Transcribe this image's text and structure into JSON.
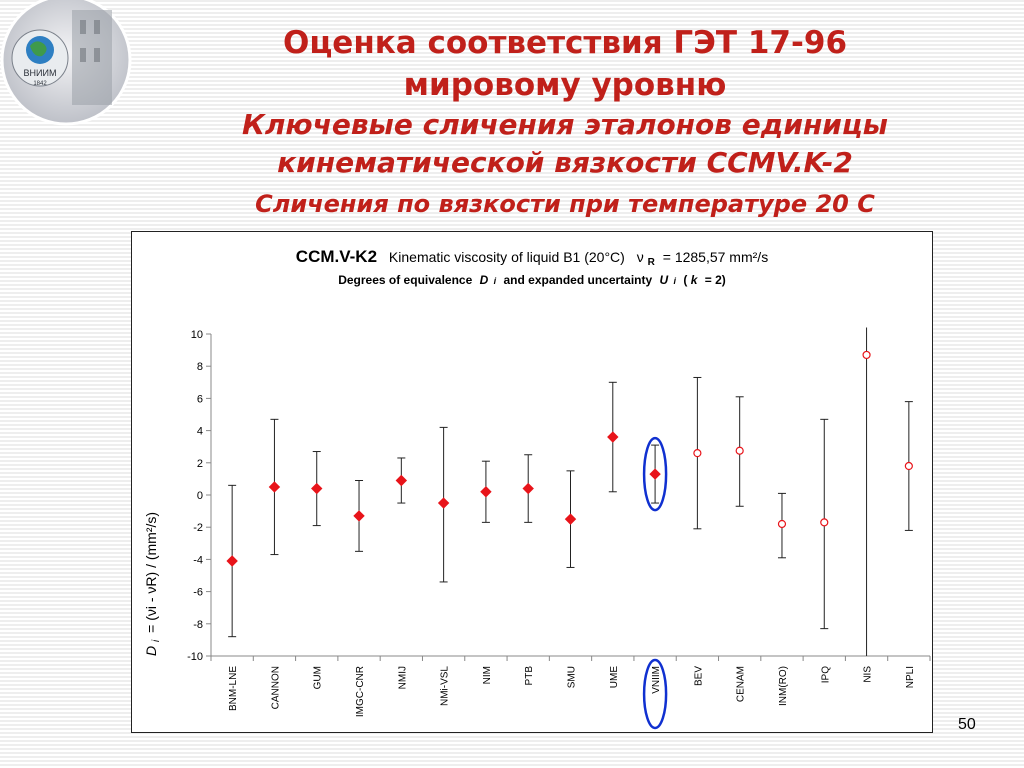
{
  "slide": {
    "title_line1": "Оценка соответствия ГЭТ 17-96",
    "title_line2": "мировому уровню",
    "subtitle_line1": "Ключевые сличения эталонов единицы",
    "subtitle_line2": "кинематической вязкости CCMV.K-2",
    "subtitle_line3": "Сличения по вязкости при температуре 20 С",
    "page_number": "50",
    "logo_text": "ВНИИМ",
    "logo_year": "1842"
  },
  "chart_data": {
    "type": "scatter",
    "title_main": "CCM.V-K2",
    "title_rest": "Kinematic viscosity of liquid B1 (20°C)",
    "title_nu": "ν",
    "title_nu_sub": "R",
    "title_value": "= 1285,57 mm²/s",
    "subtitle_prefix": "Degrees of equivalence",
    "subtitle_d": "D",
    "subtitle_i": "i",
    "subtitle_mid": "and expanded uncertainty",
    "subtitle_u": "U",
    "subtitle_k_open": "(",
    "subtitle_k": "k",
    "subtitle_k_value": "= 2)",
    "ylabel_d": "D",
    "ylabel_i": "i",
    "ylabel_rest": "= (νi - νR)   /   (mm²/s)",
    "ylim": [
      -10,
      10
    ],
    "yticks": [
      10,
      8,
      6,
      4,
      2,
      0,
      -2,
      -4,
      -6,
      -8,
      -10
    ],
    "categories": [
      "BNM-LNE",
      "CANNON",
      "GUM",
      "IMGC-CNR",
      "NMIJ",
      "NMi-VSL",
      "NIM",
      "PTB",
      "SMU",
      "UME",
      "VNIIM",
      "BEV",
      "CENAM",
      "INM(RO)",
      "IPQ",
      "NIS",
      "NPLI"
    ],
    "values": [
      -4.1,
      0.5,
      0.4,
      -1.3,
      0.9,
      -0.5,
      0.2,
      0.4,
      -1.5,
      3.6,
      1.3,
      2.6,
      2.75,
      -1.8,
      -1.7,
      8.7,
      1.8
    ],
    "lower": [
      -8.8,
      -3.7,
      -1.9,
      -3.5,
      -0.5,
      -5.4,
      -1.7,
      -1.7,
      -4.5,
      0.2,
      -0.5,
      -2.1,
      -0.7,
      -3.9,
      -8.3,
      -10,
      -2.2
    ],
    "upper": [
      0.6,
      4.7,
      2.7,
      0.9,
      2.3,
      4.2,
      2.1,
      2.5,
      1.5,
      7.0,
      3.1,
      7.3,
      6.1,
      0.1,
      4.7,
      10.4,
      5.8
    ],
    "markers": [
      "diamond",
      "diamond",
      "diamond",
      "diamond",
      "diamond",
      "diamond",
      "diamond",
      "diamond",
      "diamond",
      "diamond",
      "diamond",
      "circle",
      "circle",
      "circle",
      "circle",
      "circle",
      "circle"
    ],
    "highlight": "VNIIM",
    "marker_color": "#e8141a",
    "highlight_color": "#1030d0",
    "grid": false
  }
}
